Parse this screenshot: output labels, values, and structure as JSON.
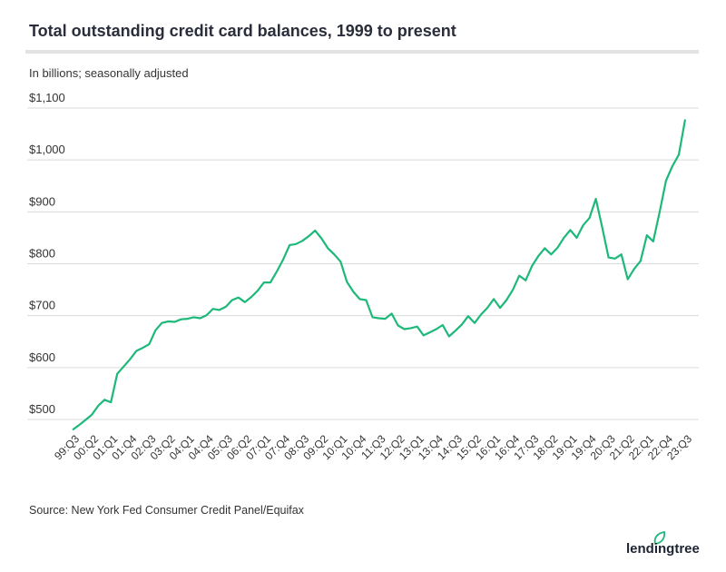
{
  "chart_data": {
    "type": "line",
    "title": "Total outstanding credit card balances, 1999 to present",
    "subtitle": "In billions; seasonally adjusted",
    "source": "Source: New York Fed Consumer Credit Panel/Equifax",
    "ylim": [
      500,
      1100
    ],
    "y_ticks": [
      500,
      600,
      700,
      800,
      900,
      1000,
      1100
    ],
    "y_tick_labels": [
      "$500",
      "$600",
      "$700",
      "$800",
      "$900",
      "$1,000",
      "$1,100"
    ],
    "grid": true,
    "x_tick_every": 3,
    "x_tick_labels": [
      "99:Q3",
      "00:Q2",
      "01:Q1",
      "01:Q4",
      "02:Q3",
      "03:Q2",
      "04:Q1",
      "04:Q4",
      "05:Q3",
      "06:Q2",
      "07:Q1",
      "07:Q4",
      "08:Q3",
      "09:Q2",
      "10:Q1",
      "10:Q4",
      "11:Q3",
      "12:Q2",
      "13:Q1",
      "13:Q4",
      "14:Q3",
      "15:Q2",
      "16:Q1",
      "16:Q4",
      "17:Q3",
      "18:Q2",
      "19:Q1",
      "19:Q4",
      "20:Q3",
      "21:Q2",
      "22:Q1",
      "22:Q4",
      "23:Q3"
    ],
    "series": [
      {
        "color": "#1db87a",
        "values": [
          480,
          489,
          499,
          509,
          526,
          538,
          533,
          588,
          602,
          616,
          632,
          638,
          645,
          672,
          686,
          689,
          688,
          693,
          694,
          697,
          695,
          701,
          713,
          711,
          717,
          730,
          735,
          726,
          736,
          748,
          764,
          764,
          785,
          808,
          836,
          838,
          844,
          853,
          864,
          849,
          830,
          818,
          804,
          765,
          746,
          732,
          730,
          697,
          695,
          694,
          704,
          681,
          674,
          676,
          679,
          662,
          668,
          674,
          682,
          660,
          671,
          683,
          699,
          686,
          702,
          715,
          732,
          715,
          730,
          750,
          777,
          768,
          796,
          815,
          830,
          818,
          831,
          850,
          865,
          850,
          874,
          888,
          925,
          870,
          812,
          810,
          818,
          770,
          790,
          805,
          855,
          843,
          900,
          960,
          988,
          1010,
          1078
        ]
      }
    ]
  },
  "brand": {
    "name": "lendingtree",
    "color": "#1db87a"
  }
}
